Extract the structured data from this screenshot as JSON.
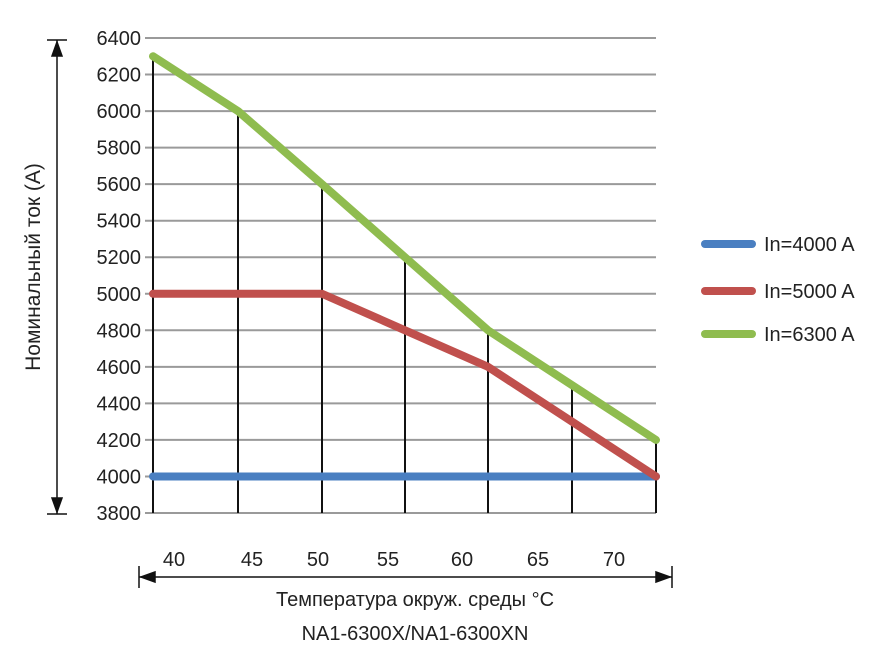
{
  "chart_data": {
    "type": "line",
    "title": "",
    "ylabel": "Номинальный ток (А)",
    "xlabel": "Температура окруж. среды °C",
    "caption": "NA1-6300X/NA1-6300XN",
    "ylim": [
      3800,
      6400
    ],
    "yticks": [
      3800,
      4000,
      4200,
      4400,
      4600,
      4800,
      5000,
      5200,
      5400,
      5600,
      5800,
      6000,
      6200,
      6400
    ],
    "x": [
      40,
      45,
      50,
      55,
      60,
      65,
      70
    ],
    "grid": true,
    "legend_position": "right",
    "series": [
      {
        "name": "In=4000 A",
        "color": "#4a7fc1",
        "values": [
          4000,
          4000,
          4000,
          4000,
          4000,
          4000,
          4000
        ]
      },
      {
        "name": "In=5000 A",
        "color": "#c0504d",
        "values": [
          5000,
          5000,
          5000,
          4800,
          4600,
          4300,
          4000
        ]
      },
      {
        "name": "In=6300 A",
        "color": "#8fbc4f",
        "values": [
          6300,
          6000,
          5600,
          5200,
          4800,
          4500,
          4200
        ]
      }
    ]
  }
}
